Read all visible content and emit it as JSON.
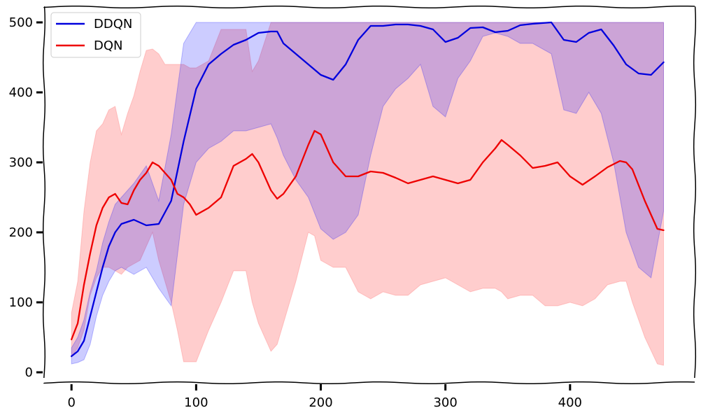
{
  "chart_data": {
    "type": "line",
    "title": "",
    "xlabel": "",
    "ylabel": "",
    "xlim": [
      -22,
      500
    ],
    "ylim": [
      -15,
      522
    ],
    "xticks": [
      0,
      100,
      200,
      300,
      400
    ],
    "yticks": [
      0,
      100,
      200,
      300,
      400,
      500
    ],
    "grid": false,
    "legend_position": "top-left",
    "series": [
      {
        "name": "DDQN",
        "color": "#0000dd",
        "band_color": "#0000ff",
        "x": [
          0,
          5,
          10,
          15,
          20,
          25,
          30,
          35,
          40,
          50,
          60,
          70,
          80,
          90,
          100,
          110,
          120,
          130,
          140,
          150,
          160,
          165,
          170,
          180,
          190,
          200,
          210,
          220,
          230,
          240,
          250,
          260,
          270,
          280,
          290,
          300,
          310,
          320,
          330,
          340,
          350,
          360,
          370,
          385,
          395,
          405,
          415,
          425,
          435,
          445,
          455,
          465,
          475
        ],
        "mean": [
          23,
          30,
          45,
          80,
          115,
          150,
          180,
          200,
          212,
          218,
          210,
          212,
          245,
          330,
          405,
          440,
          455,
          468,
          475,
          485,
          487,
          487,
          470,
          455,
          440,
          425,
          418,
          440,
          475,
          495,
          495,
          497,
          497,
          495,
          490,
          472,
          478,
          492,
          493,
          486,
          488,
          496,
          498,
          500,
          475,
          472,
          485,
          490,
          467,
          440,
          427,
          425,
          443
        ],
        "lower": [
          12,
          14,
          18,
          40,
          80,
          110,
          130,
          145,
          150,
          140,
          150,
          120,
          95,
          240,
          300,
          320,
          330,
          345,
          345,
          350,
          355,
          335,
          310,
          275,
          250,
          205,
          190,
          200,
          225,
          310,
          380,
          405,
          420,
          440,
          380,
          365,
          420,
          445,
          480,
          485,
          480,
          470,
          470,
          455,
          375,
          370,
          400,
          370,
          300,
          200,
          150,
          135,
          230
        ],
        "upper": [
          35,
          50,
          75,
          115,
          145,
          185,
          215,
          240,
          250,
          270,
          295,
          245,
          340,
          470,
          500,
          500,
          500,
          500,
          500,
          500,
          500,
          500,
          500,
          500,
          500,
          500,
          500,
          500,
          500,
          500,
          500,
          500,
          500,
          500,
          500,
          500,
          500,
          500,
          500,
          500,
          500,
          500,
          500,
          500,
          500,
          500,
          500,
          500,
          500,
          500,
          500,
          500,
          500
        ]
      },
      {
        "name": "DQN",
        "color": "#ee0000",
        "band_color": "#ff4a4a",
        "x": [
          0,
          5,
          10,
          15,
          20,
          25,
          30,
          35,
          40,
          45,
          50,
          55,
          60,
          65,
          70,
          75,
          80,
          85,
          90,
          95,
          100,
          110,
          120,
          130,
          140,
          145,
          150,
          160,
          165,
          170,
          180,
          190,
          195,
          200,
          210,
          220,
          230,
          240,
          250,
          260,
          270,
          280,
          290,
          300,
          310,
          320,
          330,
          340,
          345,
          350,
          360,
          370,
          380,
          390,
          400,
          410,
          420,
          430,
          440,
          445,
          450,
          460,
          470,
          475
        ],
        "mean": [
          47,
          70,
          125,
          170,
          210,
          235,
          250,
          255,
          242,
          240,
          260,
          275,
          285,
          300,
          295,
          285,
          275,
          255,
          250,
          240,
          225,
          235,
          250,
          295,
          305,
          312,
          300,
          260,
          248,
          255,
          280,
          325,
          345,
          340,
          300,
          280,
          280,
          287,
          285,
          278,
          270,
          275,
          280,
          275,
          270,
          275,
          300,
          320,
          332,
          325,
          310,
          292,
          295,
          300,
          280,
          268,
          280,
          293,
          302,
          300,
          290,
          245,
          205,
          203
        ],
        "lower": [
          22,
          35,
          60,
          110,
          135,
          150,
          150,
          145,
          140,
          150,
          155,
          160,
          180,
          200,
          160,
          130,
          100,
          60,
          15,
          15,
          15,
          60,
          100,
          145,
          145,
          100,
          70,
          30,
          40,
          70,
          130,
          200,
          195,
          160,
          150,
          150,
          115,
          105,
          115,
          110,
          110,
          125,
          130,
          135,
          125,
          115,
          120,
          120,
          115,
          105,
          110,
          110,
          95,
          95,
          100,
          95,
          105,
          125,
          130,
          130,
          100,
          50,
          12,
          10
        ],
        "upper": [
          85,
          130,
          230,
          300,
          345,
          355,
          375,
          380,
          340,
          370,
          395,
          430,
          460,
          462,
          455,
          440,
          440,
          440,
          440,
          435,
          435,
          445,
          490,
          490,
          490,
          430,
          445,
          500,
          500,
          500,
          500,
          500,
          500,
          500,
          500,
          500,
          500,
          500,
          500,
          500,
          500,
          500,
          500,
          500,
          500,
          500,
          500,
          500,
          500,
          500,
          500,
          500,
          500,
          500,
          500,
          500,
          500,
          500,
          500,
          500,
          500,
          500,
          500,
          500
        ]
      }
    ]
  }
}
